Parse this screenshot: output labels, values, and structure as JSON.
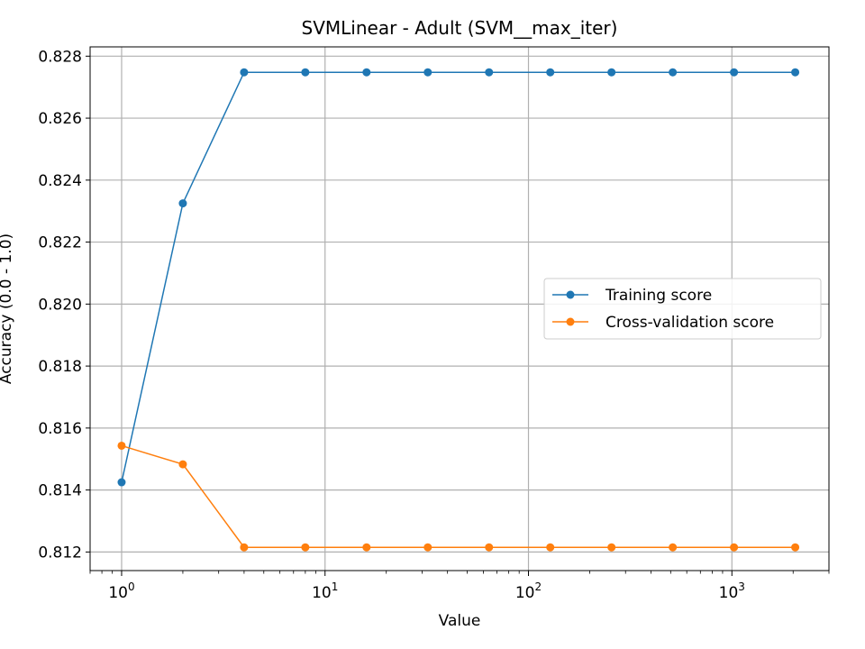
{
  "chart_data": {
    "type": "line",
    "title": "SVMLinear - Adult (SVM__max_iter)",
    "xlabel": "Value",
    "ylabel": "Accuracy (0.0 - 1.0)",
    "xscale": "log",
    "xlim": [
      0.7,
      3000
    ],
    "ylim": [
      0.8114,
      0.8283
    ],
    "x": [
      1,
      2,
      4,
      8,
      16,
      32,
      64,
      128,
      256,
      512,
      1024,
      2048
    ],
    "x_ticks": [
      {
        "value": 1,
        "base": "10",
        "exp": "0"
      },
      {
        "value": 10,
        "base": "10",
        "exp": "1"
      },
      {
        "value": 100,
        "base": "10",
        "exp": "2"
      },
      {
        "value": 1000,
        "base": "10",
        "exp": "3"
      }
    ],
    "y_ticks": [
      "0.812",
      "0.814",
      "0.816",
      "0.818",
      "0.820",
      "0.822",
      "0.824",
      "0.826",
      "0.828"
    ],
    "grid": true,
    "legend_position": "center-right",
    "series": [
      {
        "name": "Training score",
        "color": "#1f77b4",
        "values": [
          0.81425,
          0.82325,
          0.82748,
          0.82748,
          0.82748,
          0.82748,
          0.82748,
          0.82748,
          0.82748,
          0.82748,
          0.82748,
          0.82748
        ]
      },
      {
        "name": "Cross-validation score",
        "color": "#ff7f0e",
        "values": [
          0.81543,
          0.81483,
          0.81215,
          0.81215,
          0.81215,
          0.81215,
          0.81215,
          0.81215,
          0.81215,
          0.81215,
          0.81215,
          0.81215
        ]
      }
    ]
  }
}
